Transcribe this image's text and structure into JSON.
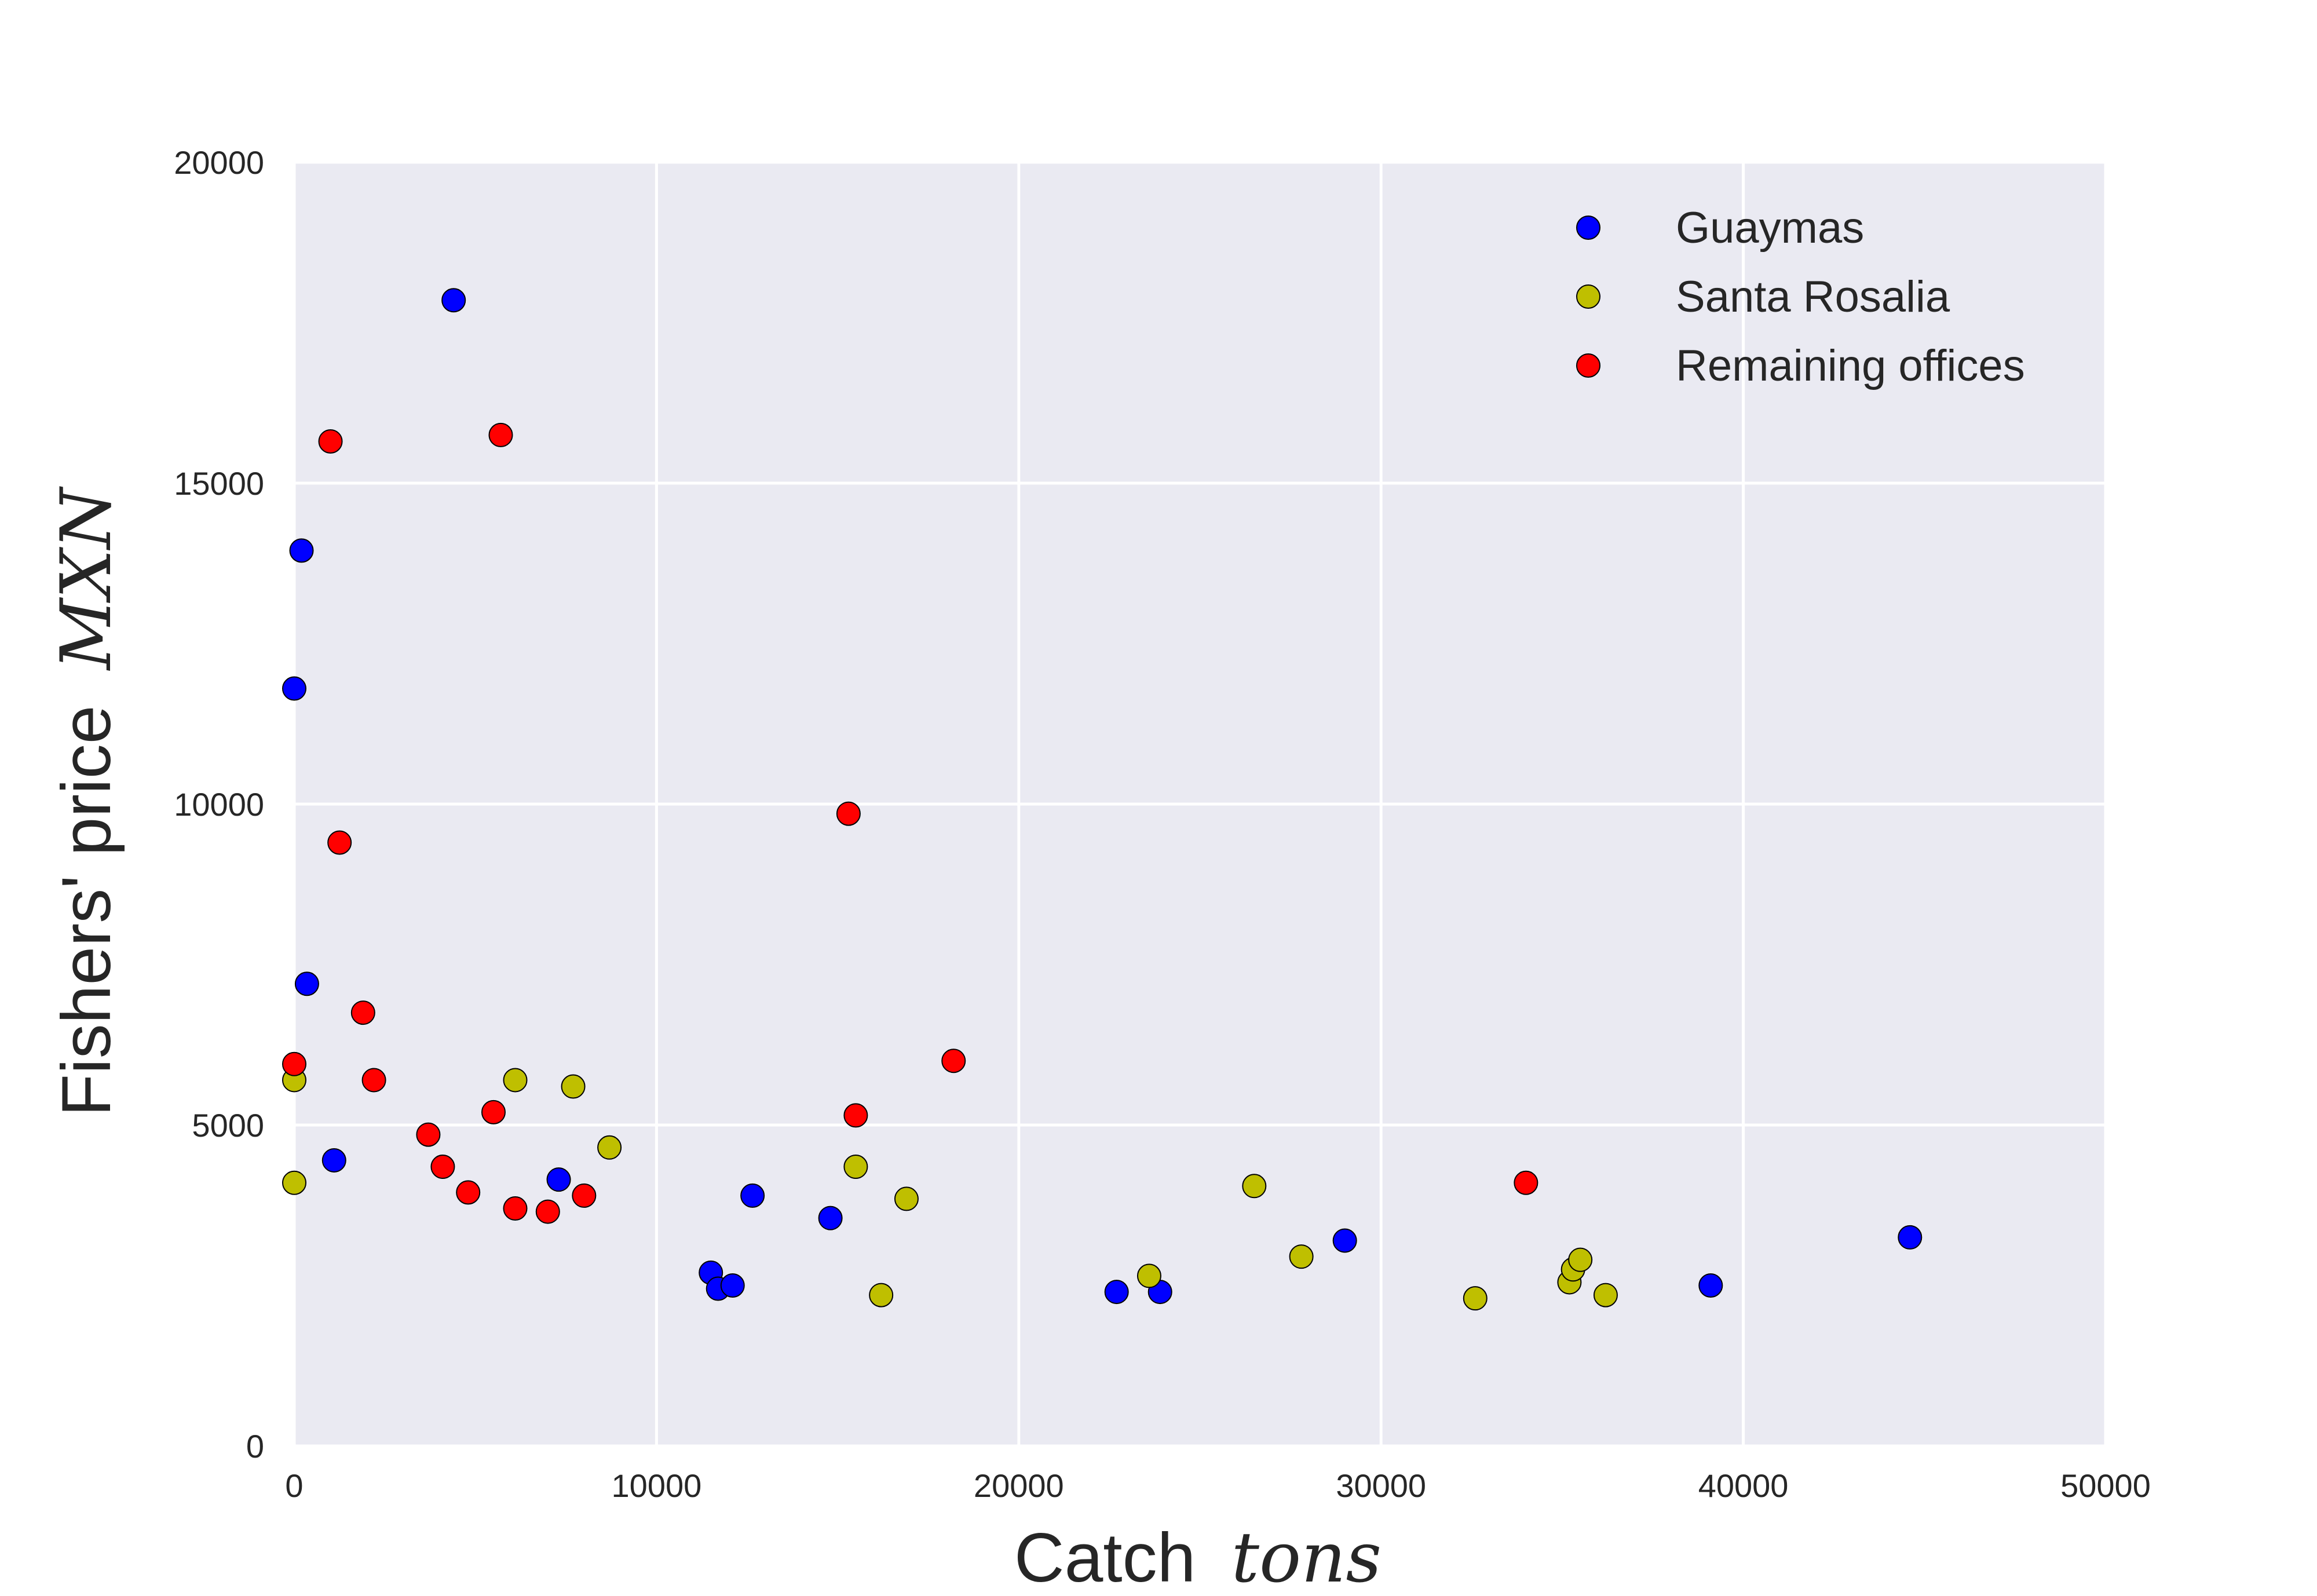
{
  "chart_data": {
    "type": "scatter",
    "title": "",
    "xlabel": {
      "text": "Catch",
      "math": "tons"
    },
    "ylabel": {
      "text": "Fishers' price",
      "math": "MXN"
    },
    "xlim": [
      0,
      50000
    ],
    "ylim": [
      0,
      20000
    ],
    "xticks": [
      0,
      10000,
      20000,
      30000,
      40000,
      50000
    ],
    "yticks": [
      0,
      5000,
      10000,
      15000,
      20000
    ],
    "xtick_labels": [
      "0",
      "10000",
      "20000",
      "30000",
      "40000",
      "50000"
    ],
    "ytick_labels": [
      "0",
      "5000",
      "10000",
      "15000",
      "20000"
    ],
    "grid": true,
    "legend_position": "top-right",
    "background_color": "#eaeaf2",
    "grid_color": "#ffffff",
    "series": [
      {
        "name": "Guaymas",
        "color": "#0000ff",
        "points": [
          [
            4400,
            17850
          ],
          [
            200,
            13950
          ],
          [
            0,
            11800
          ],
          [
            350,
            7200
          ],
          [
            1100,
            4450
          ],
          [
            7300,
            4150
          ],
          [
            11500,
            2700
          ],
          [
            11700,
            2450
          ],
          [
            12100,
            2500
          ],
          [
            12650,
            3900
          ],
          [
            14800,
            3550
          ],
          [
            22700,
            2400
          ],
          [
            23900,
            2400
          ],
          [
            29000,
            3200
          ],
          [
            39100,
            2500
          ],
          [
            44600,
            3250
          ]
        ]
      },
      {
        "name": "Santa Rosalia",
        "color": "#bfbf00",
        "points": [
          [
            0,
            5700
          ],
          [
            0,
            4100
          ],
          [
            6100,
            5700
          ],
          [
            7700,
            5600
          ],
          [
            8700,
            4650
          ],
          [
            15500,
            4350
          ],
          [
            16200,
            2350
          ],
          [
            16900,
            3850
          ],
          [
            23600,
            2650
          ],
          [
            26500,
            4050
          ],
          [
            27800,
            2950
          ],
          [
            32600,
            2300
          ],
          [
            35200,
            2550
          ],
          [
            35300,
            2750
          ],
          [
            35500,
            2900
          ],
          [
            36200,
            2350
          ]
        ]
      },
      {
        "name": "Remaining offices",
        "color": "#ff0000",
        "points": [
          [
            1000,
            15650
          ],
          [
            5700,
            15750
          ],
          [
            1250,
            9400
          ],
          [
            1900,
            6750
          ],
          [
            0,
            5950
          ],
          [
            2200,
            5700
          ],
          [
            3700,
            4850
          ],
          [
            4100,
            4350
          ],
          [
            4800,
            3950
          ],
          [
            5500,
            5200
          ],
          [
            6100,
            3700
          ],
          [
            7000,
            3650
          ],
          [
            8000,
            3900
          ],
          [
            15300,
            9850
          ],
          [
            15500,
            5150
          ],
          [
            18200,
            6000
          ],
          [
            34000,
            4100
          ]
        ]
      }
    ]
  }
}
